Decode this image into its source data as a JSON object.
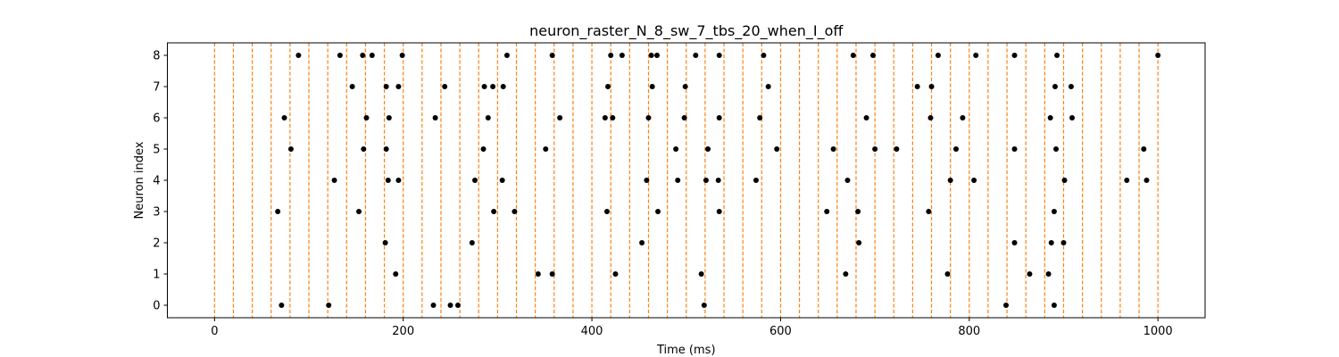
{
  "chart_data": {
    "type": "scatter",
    "title": "neuron_raster_N_8_sw_7_tbs_20_when_I_off",
    "xlabel": "Time (ms)",
    "ylabel": "Neuron index",
    "xlim": [
      -50,
      1050
    ],
    "ylim": [
      -0.4,
      8.4
    ],
    "xticks": [
      0,
      200,
      400,
      600,
      800,
      1000
    ],
    "yticks": [
      0,
      1,
      2,
      3,
      4,
      5,
      6,
      7,
      8
    ],
    "grid": false,
    "legend": "none",
    "vlines": [
      0,
      20,
      40,
      60,
      80,
      100,
      120,
      140,
      160,
      180,
      200,
      220,
      240,
      260,
      280,
      300,
      320,
      340,
      360,
      380,
      400,
      420,
      440,
      460,
      480,
      500,
      520,
      540,
      560,
      580,
      600,
      620,
      640,
      660,
      680,
      700,
      720,
      740,
      760,
      780,
      800,
      820,
      840,
      860,
      880,
      900,
      920,
      940,
      960,
      980,
      1000
    ],
    "vline_style": "dashed",
    "spikes": [
      {
        "neuron": 0,
        "times": [
          71,
          121,
          232,
          250,
          258,
          519,
          839,
          890
        ]
      },
      {
        "neuron": 1,
        "times": [
          192,
          343,
          358,
          425,
          516,
          669,
          777,
          864,
          884
        ]
      },
      {
        "neuron": 2,
        "times": [
          181,
          273,
          453,
          683,
          848,
          887,
          900
        ]
      },
      {
        "neuron": 3,
        "times": [
          67,
          153,
          296,
          318,
          416,
          470,
          535,
          649,
          682,
          757,
          890
        ]
      },
      {
        "neuron": 4,
        "times": [
          127,
          184,
          195,
          276,
          305,
          458,
          491,
          521,
          534,
          574,
          671,
          780,
          805,
          901,
          967,
          988
        ]
      },
      {
        "neuron": 5,
        "times": [
          81,
          158,
          182,
          285,
          351,
          489,
          523,
          596,
          656,
          700,
          723,
          786,
          848,
          892,
          985
        ]
      },
      {
        "neuron": 6,
        "times": [
          74,
          161,
          185,
          234,
          290,
          366,
          414,
          422,
          460,
          498,
          535,
          578,
          691,
          759,
          793,
          886,
          909
        ]
      },
      {
        "neuron": 7,
        "times": [
          146,
          182,
          195,
          244,
          286,
          295,
          306,
          417,
          464,
          499,
          587,
          745,
          760,
          891,
          908
        ]
      },
      {
        "neuron": 8,
        "times": [
          89,
          133,
          157,
          167,
          199,
          310,
          358,
          420,
          432,
          463,
          469,
          510,
          535,
          582,
          677,
          698,
          767,
          807,
          848,
          893,
          1000
        ]
      }
    ],
    "colors": {
      "spike": "#000000",
      "vline": "#ff7f0e",
      "axis": "#000000",
      "background": "#ffffff"
    }
  }
}
